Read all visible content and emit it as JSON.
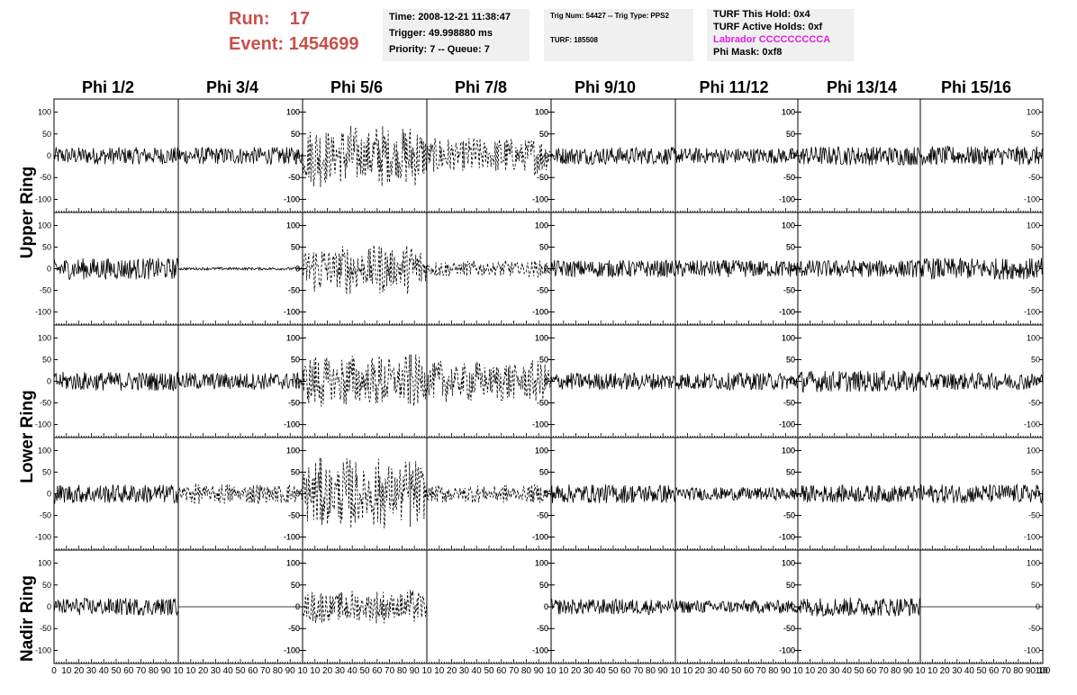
{
  "header": {
    "run_label": "Run:",
    "run_value": "17",
    "event_label": "Event:",
    "event_value": "1454699",
    "time_pane": {
      "time": "Time: 2008-12-21 11:38:47",
      "trigger": "Trigger: 49.998880 ms",
      "priority": "Priority: 7 -- Queue: 7"
    },
    "trig_pane": {
      "trig": "Trig Num: 54427 -- Trig Type: PPS2",
      "turf": "TURF: 185508"
    },
    "turf_pane": {
      "hold": "TURF This Hold: 0x4",
      "active": "TURF Active Holds: 0xf",
      "labrador": "Labrador CCCCCCCCCA",
      "phi_mask": "Phi Mask: 0xf8"
    },
    "colors": {
      "run_text": "#c8504a",
      "labrador_text": "#e020e0",
      "pane_bg": "#f0f0f0"
    }
  },
  "chart_data": {
    "type": "line",
    "columns": [
      "Phi 1/2",
      "Phi 3/4",
      "Phi 5/6",
      "Phi 7/8",
      "Phi 9/10",
      "Phi 11/12",
      "Phi 13/14",
      "Phi 15/16"
    ],
    "rows": [
      "Upper Ring",
      "Lower Ring",
      "Nadir Ring"
    ],
    "x_range": [
      0,
      100
    ],
    "y_range": [
      -130,
      130
    ],
    "y_ticks": [
      -100,
      -50,
      0,
      50,
      100
    ],
    "y_tick_labels": [
      "-100",
      "-50",
      "0",
      "50",
      "100"
    ],
    "x_ticks": [
      0,
      10,
      20,
      30,
      40,
      50,
      60,
      70,
      80,
      90,
      100
    ],
    "x_tick_labels_first": [
      "0",
      "10",
      "20",
      "30",
      "40",
      "50",
      "60",
      "70",
      "80",
      "90",
      "10"
    ],
    "x_tick_labels": [
      "10",
      "20",
      "30",
      "40",
      "50",
      "60",
      "70",
      "80",
      "90",
      "10"
    ],
    "x_tick_label_last": "100",
    "y_tick_side": [
      "left",
      "right",
      "left",
      "right",
      "left",
      "right",
      "left",
      "right"
    ],
    "panels": [
      [
        {
          "amp": 20,
          "dashed": false
        },
        {
          "amp": 20,
          "dashed": false
        },
        {
          "amp": 75,
          "dashed": true
        },
        {
          "amp": 45,
          "dashed": true
        },
        {
          "amp": 20,
          "dashed": false
        },
        {
          "amp": 18,
          "dashed": false
        },
        {
          "amp": 22,
          "dashed": false
        },
        {
          "amp": 22,
          "dashed": false
        }
      ],
      [
        {
          "amp": 25,
          "dashed": false
        },
        {
          "amp": 3,
          "dashed": false
        },
        {
          "amp": 60,
          "dashed": true
        },
        {
          "amp": 20,
          "dashed": true
        },
        {
          "amp": 20,
          "dashed": false
        },
        {
          "amp": 20,
          "dashed": false
        },
        {
          "amp": 20,
          "dashed": false
        },
        {
          "amp": 25,
          "dashed": false
        }
      ],
      [
        {
          "amp": 22,
          "dashed": false
        },
        {
          "amp": 20,
          "dashed": false
        },
        {
          "amp": 65,
          "dashed": true
        },
        {
          "amp": 50,
          "dashed": true
        },
        {
          "amp": 20,
          "dashed": false
        },
        {
          "amp": 20,
          "dashed": false
        },
        {
          "amp": 25,
          "dashed": false
        },
        {
          "amp": 20,
          "dashed": false
        }
      ],
      [
        {
          "amp": 22,
          "dashed": false
        },
        {
          "amp": 25,
          "dashed": true
        },
        {
          "amp": 85,
          "dashed": true
        },
        {
          "amp": 22,
          "dashed": true
        },
        {
          "amp": 22,
          "dashed": false
        },
        {
          "amp": 15,
          "dashed": false
        },
        {
          "amp": 20,
          "dashed": false
        },
        {
          "amp": 22,
          "dashed": false
        }
      ],
      [
        {
          "amp": 20,
          "dashed": false
        },
        {
          "amp": 0,
          "dashed": false
        },
        {
          "amp": 40,
          "dashed": true
        },
        null,
        {
          "amp": 18,
          "dashed": false
        },
        {
          "amp": 15,
          "dashed": false
        },
        {
          "amp": 22,
          "dashed": false
        },
        {
          "amp": 0,
          "dashed": false
        }
      ]
    ]
  }
}
